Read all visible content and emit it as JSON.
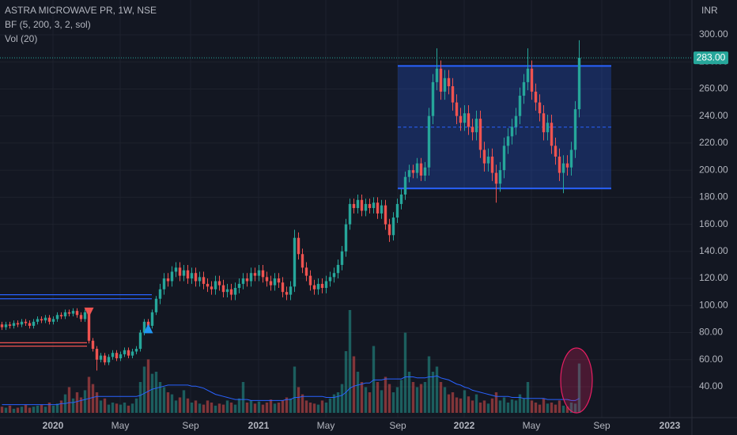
{
  "chart_data": {
    "type": "candlestick",
    "title": "ASTRA MICROWAVE PR, 1W, NSE",
    "indicator": "BF (5, 200, 3, 2, sol)",
    "volume_label": "Vol (20)",
    "currency": "INR",
    "up_color": "#26a69a",
    "down_color": "#ef5350",
    "ylim": [
      17.2,
      325.7
    ],
    "yticks": [
      {
        "value": 40,
        "label": "40.00"
      },
      {
        "value": 60,
        "label": "60.00"
      },
      {
        "value": 80,
        "label": "80.00"
      },
      {
        "value": 100,
        "label": "100.00"
      },
      {
        "value": 120,
        "label": "120.00"
      },
      {
        "value": 140,
        "label": "140.00"
      },
      {
        "value": 160,
        "label": "160.00"
      },
      {
        "value": 180,
        "label": "180.00"
      },
      {
        "value": 200,
        "label": "200.00"
      },
      {
        "value": 220,
        "label": "220.00"
      },
      {
        "value": 240,
        "label": "240.00"
      },
      {
        "value": 260,
        "label": "260.00"
      },
      {
        "value": 280,
        "label": "280.00"
      },
      {
        "value": 300,
        "label": "300.00"
      }
    ],
    "xlim": [
      -0.5,
      174.5
    ],
    "xticks": [
      {
        "value": 12.9,
        "label": "2020"
      },
      {
        "value": 29.9,
        "label": "May"
      },
      {
        "value": 47.7,
        "label": "Sep"
      },
      {
        "value": 64.9,
        "label": "2021"
      },
      {
        "value": 81.9,
        "label": "May"
      },
      {
        "value": 100.1,
        "label": "Sep"
      },
      {
        "value": 116.9,
        "label": "2022"
      },
      {
        "value": 133.9,
        "label": "May"
      },
      {
        "value": 151.7,
        "label": "Sep"
      },
      {
        "value": 168.9,
        "label": "2023"
      }
    ],
    "grid": true,
    "open": [
      86,
      84,
      86,
      85,
      87,
      86,
      88,
      87,
      85,
      88,
      90,
      89,
      91,
      88,
      90,
      93,
      92,
      95,
      94,
      96,
      93,
      90,
      95,
      74,
      68,
      60,
      63,
      58,
      62,
      65,
      61,
      64,
      67,
      63,
      66,
      68,
      80,
      88,
      85,
      95,
      105,
      112,
      120,
      118,
      125,
      128,
      122,
      126,
      120,
      124,
      118,
      121,
      116,
      114,
      112,
      118,
      115,
      110,
      112,
      108,
      113,
      116,
      120,
      118,
      124,
      122,
      126,
      121,
      118,
      115,
      120,
      117,
      110,
      108,
      114,
      150,
      138,
      128,
      122,
      115,
      112,
      116,
      113,
      118,
      121,
      124,
      130,
      140,
      160,
      175,
      172,
      178,
      170,
      175,
      172,
      176,
      168,
      174,
      160,
      152,
      165,
      175,
      182,
      195,
      200,
      198,
      205,
      196,
      202,
      240,
      265,
      275,
      258,
      268,
      262,
      250,
      240,
      235,
      242,
      232,
      228,
      238,
      215,
      205,
      210,
      198,
      190,
      200,
      218,
      225,
      232,
      240,
      255,
      265,
      275,
      258,
      250,
      242,
      228,
      235,
      218,
      210,
      198,
      205,
      202,
      215,
      245
    ],
    "high": [
      88,
      88,
      88,
      89,
      89,
      90,
      90,
      89,
      90,
      92,
      92,
      93,
      93,
      92,
      95,
      95,
      97,
      97,
      98,
      98,
      95,
      97,
      97,
      76,
      70,
      65,
      65,
      64,
      67,
      67,
      66,
      69,
      69,
      68,
      70,
      82,
      90,
      90,
      97,
      107,
      116,
      124,
      124,
      129,
      132,
      132,
      130,
      130,
      128,
      128,
      125,
      125,
      120,
      118,
      122,
      122,
      119,
      116,
      116,
      117,
      120,
      124,
      124,
      128,
      128,
      130,
      130,
      125,
      122,
      124,
      124,
      121,
      114,
      118,
      156,
      154,
      142,
      132,
      126,
      119,
      120,
      120,
      122,
      125,
      128,
      134,
      144,
      164,
      179,
      179,
      182,
      182,
      179,
      179,
      180,
      180,
      178,
      178,
      164,
      169,
      179,
      186,
      199,
      204,
      204,
      209,
      209,
      206,
      246,
      271,
      290,
      281,
      274,
      274,
      268,
      256,
      246,
      248,
      248,
      238,
      244,
      244,
      221,
      216,
      216,
      204,
      206,
      224,
      231,
      238,
      246,
      261,
      271,
      290,
      281,
      264,
      256,
      248,
      241,
      241,
      224,
      216,
      211,
      211,
      221,
      251,
      296
    ],
    "low": [
      82,
      82,
      83,
      83,
      84,
      84,
      85,
      83,
      83,
      86,
      87,
      87,
      86,
      86,
      88,
      90,
      90,
      92,
      92,
      91,
      88,
      88,
      72,
      66,
      52,
      58,
      56,
      56,
      60,
      59,
      59,
      62,
      61,
      61,
      64,
      66,
      78,
      83,
      83,
      93,
      101,
      108,
      114,
      114,
      121,
      118,
      118,
      116,
      116,
      114,
      114,
      112,
      110,
      108,
      108,
      111,
      106,
      106,
      104,
      104,
      109,
      112,
      114,
      114,
      118,
      118,
      117,
      114,
      111,
      111,
      113,
      106,
      104,
      104,
      110,
      134,
      124,
      118,
      111,
      108,
      108,
      109,
      109,
      114,
      117,
      120,
      126,
      136,
      156,
      168,
      168,
      166,
      166,
      168,
      168,
      164,
      164,
      156,
      147,
      148,
      161,
      171,
      178,
      191,
      194,
      194,
      192,
      192,
      196,
      234,
      259,
      252,
      252,
      256,
      244,
      234,
      229,
      229,
      226,
      222,
      222,
      209,
      199,
      199,
      192,
      176,
      184,
      194,
      212,
      219,
      226,
      234,
      249,
      259,
      252,
      244,
      236,
      222,
      222,
      212,
      204,
      192,
      183,
      196,
      196,
      209,
      239
    ],
    "close": [
      84,
      86,
      85,
      87,
      86,
      88,
      87,
      85,
      88,
      90,
      89,
      91,
      88,
      90,
      93,
      92,
      95,
      94,
      96,
      93,
      90,
      95,
      74,
      68,
      60,
      63,
      58,
      62,
      65,
      61,
      64,
      67,
      63,
      66,
      68,
      80,
      88,
      85,
      95,
      105,
      112,
      120,
      118,
      125,
      128,
      122,
      126,
      120,
      124,
      118,
      121,
      116,
      114,
      112,
      118,
      115,
      110,
      112,
      108,
      113,
      116,
      120,
      118,
      124,
      122,
      126,
      121,
      118,
      115,
      120,
      117,
      110,
      108,
      114,
      150,
      138,
      128,
      122,
      115,
      112,
      116,
      113,
      118,
      121,
      124,
      130,
      140,
      160,
      175,
      172,
      178,
      170,
      175,
      172,
      176,
      168,
      174,
      160,
      152,
      165,
      175,
      182,
      195,
      200,
      198,
      205,
      196,
      202,
      240,
      265,
      275,
      258,
      268,
      262,
      250,
      240,
      235,
      242,
      232,
      228,
      238,
      215,
      205,
      210,
      198,
      190,
      200,
      218,
      225,
      232,
      240,
      255,
      265,
      275,
      258,
      250,
      242,
      228,
      235,
      218,
      210,
      198,
      205,
      202,
      215,
      245,
      283
    ],
    "vlim": [
      0,
      100
    ],
    "volume": [
      6,
      5,
      7,
      4,
      5,
      6,
      8,
      5,
      6,
      7,
      8,
      6,
      10,
      7,
      9,
      12,
      18,
      25,
      14,
      20,
      15,
      22,
      35,
      28,
      20,
      12,
      14,
      8,
      10,
      9,
      8,
      10,
      7,
      9,
      14,
      30,
      45,
      52,
      38,
      40,
      30,
      25,
      20,
      18,
      12,
      15,
      22,
      14,
      10,
      12,
      9,
      8,
      12,
      10,
      7,
      9,
      8,
      12,
      10,
      8,
      14,
      30,
      10,
      12,
      9,
      11,
      8,
      10,
      13,
      9,
      10,
      12,
      15,
      14,
      45,
      25,
      18,
      12,
      10,
      9,
      8,
      12,
      10,
      14,
      18,
      20,
      28,
      60,
      100,
      55,
      40,
      30,
      25,
      20,
      65,
      30,
      22,
      35,
      28,
      20,
      25,
      32,
      78,
      40,
      30,
      25,
      28,
      30,
      55,
      40,
      45,
      30,
      25,
      18,
      20,
      15,
      14,
      22,
      16,
      12,
      18,
      10,
      12,
      9,
      14,
      20,
      12,
      15,
      10,
      13,
      12,
      18,
      14,
      30,
      12,
      10,
      8,
      14,
      9,
      10,
      8,
      12,
      7,
      6,
      10,
      9,
      48
    ],
    "volume_ma_color": "#2962ff",
    "volume_ma": [
      8,
      8,
      8,
      8,
      8,
      8,
      8,
      8,
      8,
      8,
      8,
      8,
      8,
      8,
      8,
      9,
      9,
      10,
      10,
      11,
      12,
      13,
      14,
      15,
      16,
      16,
      16,
      16,
      16,
      16,
      16,
      16,
      16,
      16,
      16,
      17,
      19,
      21,
      23,
      24,
      25,
      26,
      27,
      27,
      27,
      27,
      27,
      27,
      26,
      26,
      25,
      24,
      22,
      20,
      18,
      17,
      16,
      15,
      14,
      13,
      13,
      13,
      13,
      12,
      12,
      12,
      12,
      12,
      12,
      12,
      12,
      12,
      13,
      13,
      15,
      15,
      16,
      16,
      16,
      16,
      16,
      16,
      15,
      15,
      15,
      16,
      17,
      20,
      24,
      26,
      27,
      28,
      29,
      29,
      32,
      32,
      32,
      33,
      33,
      33,
      33,
      33,
      35,
      35,
      35,
      34,
      34,
      34,
      35,
      35,
      36,
      34,
      33,
      32,
      30,
      28,
      27,
      25,
      24,
      22,
      21,
      20,
      19,
      18,
      17,
      16,
      16,
      16,
      16,
      15,
      15,
      15,
      14,
      14,
      14,
      14,
      14,
      14,
      13,
      13,
      13,
      13,
      13,
      13,
      12,
      12,
      14
    ],
    "levels": [
      {
        "y": 108,
        "x_end": 37.9,
        "color": "#2962ff"
      },
      {
        "y": 105,
        "x_end": 37.9,
        "color": "#2962ff"
      },
      {
        "y": 72.5,
        "x_end": 21.5,
        "color": "#ef5350"
      },
      {
        "y": 70,
        "x_end": 21.5,
        "color": "#ef5350"
      }
    ],
    "signals": [
      {
        "x": 22,
        "y": 95,
        "direction": "down",
        "color": "#ef5350"
      },
      {
        "x": 37,
        "y": 83,
        "direction": "up",
        "color": "#2196f3"
      }
    ],
    "box": {
      "x": [
        100.1,
        154.1
      ],
      "y": [
        186.5,
        277
      ],
      "mid": 231.75,
      "color": "#2962ff"
    },
    "last_price": {
      "value": 283,
      "label": "283.00"
    }
  }
}
